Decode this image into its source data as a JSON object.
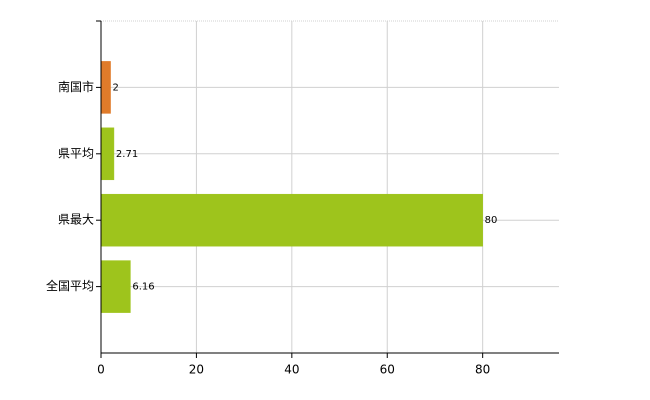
{
  "chart_data": {
    "type": "bar",
    "orientation": "horizontal",
    "categories": [
      "南国市",
      "県平均",
      "県最大",
      "全国平均"
    ],
    "values": [
      2,
      2.71,
      80,
      6.16
    ],
    "colors": [
      "#e07b2a",
      "#9ec41c",
      "#9ec41c",
      "#9ec41c"
    ],
    "xlim": [
      0,
      96
    ],
    "xticks": [
      0,
      20,
      40,
      60,
      80
    ],
    "grid": true
  }
}
